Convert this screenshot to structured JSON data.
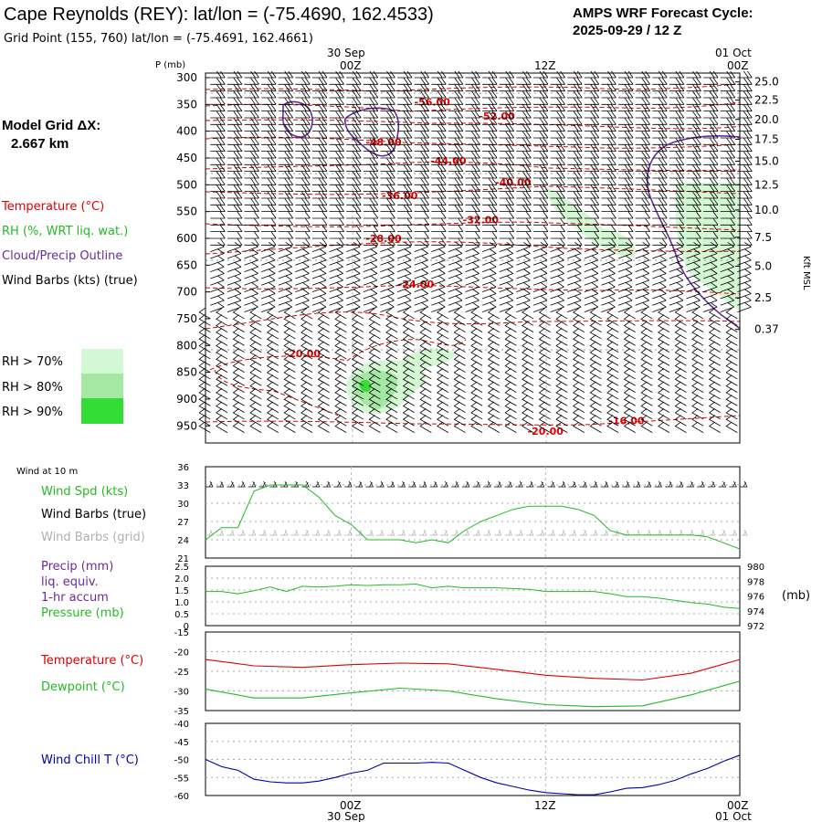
{
  "header": {
    "title": "Cape Reynolds (REY):  lat/lon = (-75.4690, 162.4533)",
    "grid_point": "Grid Point (155, 760) lat/lon = (-75.4691, 162.4661)",
    "cycle_line1": "AMPS WRF Forecast Cycle:",
    "cycle_line2": "2025-09-29 / 12  Z"
  },
  "side_labels": {
    "model_grid_label": "Model Grid ΔX:",
    "model_grid_value": "2.667 km",
    "temperature": "Temperature (°C)",
    "rh": "RH (%, WRT liq. wat.)",
    "cloud": "Cloud/Precip Outline",
    "wind": "Wind Barbs (kts) (true)",
    "rh70": "RH > 70%",
    "rh80": "RH > 80%",
    "rh90": "RH > 90%",
    "wind10": "Wind at 10 m",
    "wind_spd": "Wind Spd (kts)",
    "wind_barbs_true": "Wind Barbs (true)",
    "wind_barbs_grid": "Wind Barbs (grid)",
    "precip": "Precip (mm)",
    "liq": "liq. equiv.",
    "accum": "1-hr accum",
    "pressure": "Pressure (mb)",
    "pressure_unit": "(mb)",
    "temp_panel": "Temperature (°C)",
    "dewpoint": "Dewpoint (°C)",
    "windchill": "Wind Chill T (°C)"
  },
  "colors": {
    "temperature": "#dd0000",
    "rh": "#22bb22",
    "cloud": "#6a2a9a",
    "wind_grid": "#b0b0b0",
    "windchill": "#0000aa",
    "rh70": "#d4f8d4",
    "rh80": "#a4e8a4",
    "rh90": "#33dd33"
  },
  "time_axis": {
    "top_date_1": "30 Sep",
    "top_date_2": "01 Oct",
    "bottom_date_1": "30 Sep",
    "bottom_date_2": "01 Oct",
    "ticks": [
      "00Z",
      "12Z",
      "00Z"
    ],
    "tick_hours": [
      9,
      21,
      33
    ],
    "hours_min": 0,
    "hours_max": 33
  },
  "chart_data": [
    {
      "type": "contour",
      "id": "cross_section",
      "xlabel": "",
      "ylabel": "P (mb)",
      "y2label": "Kft MSL",
      "pressure_ticks": [
        300,
        350,
        400,
        450,
        500,
        550,
        600,
        650,
        700,
        750,
        800,
        850,
        900,
        950
      ],
      "pressure_range": [
        300,
        970
      ],
      "height_ticks": [
        {
          "p": 308,
          "label": "25.0"
        },
        {
          "p": 342,
          "label": "22.5"
        },
        {
          "p": 378,
          "label": "20.0"
        },
        {
          "p": 415,
          "label": "17.5"
        },
        {
          "p": 456,
          "label": "15.0"
        },
        {
          "p": 500,
          "label": "12.5"
        },
        {
          "p": 547,
          "label": "10.0"
        },
        {
          "p": 598,
          "label": "7.5"
        },
        {
          "p": 652,
          "label": "5.0"
        },
        {
          "p": 711,
          "label": "2.5"
        },
        {
          "p": 770,
          "label": "0.37"
        }
      ],
      "isotherm_labels": [
        {
          "label": "-56.00",
          "hour": 14,
          "p": 345
        },
        {
          "label": "-52.00",
          "hour": 18,
          "p": 372
        },
        {
          "label": "-48.00",
          "hour": 11,
          "p": 420
        },
        {
          "label": "-44.00",
          "hour": 15,
          "p": 455
        },
        {
          "label": "-40.00",
          "hour": 19,
          "p": 495
        },
        {
          "label": "-36.00",
          "hour": 12,
          "p": 520
        },
        {
          "label": "-32.00",
          "hour": 17,
          "p": 565
        },
        {
          "label": "-28.00",
          "hour": 11,
          "p": 600
        },
        {
          "label": "-24.00",
          "hour": 13,
          "p": 685
        },
        {
          "label": "-20.00",
          "hour": 6,
          "p": 815
        },
        {
          "label": "-20.00",
          "hour": 21,
          "p": 960
        },
        {
          "label": "-16.00",
          "hour": 26,
          "p": 940
        }
      ]
    },
    {
      "type": "line",
      "id": "wind_speed",
      "ylabel": "Wind Spd (kts)",
      "ylim": [
        21,
        36
      ],
      "yticks": [
        21,
        24,
        27,
        30,
        33,
        36
      ],
      "x": [
        0,
        1,
        2,
        3,
        4,
        5,
        6,
        7,
        8,
        9,
        10,
        11,
        12,
        13,
        14,
        15,
        16,
        17,
        18,
        19,
        20,
        21,
        22,
        23,
        24,
        25,
        26,
        27,
        28,
        29,
        30,
        31,
        32,
        33
      ],
      "series": [
        {
          "name": "Wind Spd (kts)",
          "color": "#22bb22",
          "values": [
            24,
            26,
            26,
            32,
            33,
            33,
            33,
            31,
            28,
            26.5,
            24,
            24,
            24,
            23.5,
            24,
            23.5,
            25.5,
            27,
            28,
            29,
            29.5,
            29.5,
            29.5,
            29,
            28,
            25.5,
            24.8,
            24.8,
            24.8,
            24.8,
            24.8,
            24.5,
            23.5,
            22.5
          ]
        }
      ]
    },
    {
      "type": "line",
      "id": "precip_pressure",
      "ylabel": "Precip (mm)",
      "y2label": "Pressure (mb)",
      "ylim": [
        0,
        2.5
      ],
      "yticks": [
        0,
        0.5,
        1.0,
        1.5,
        2.0,
        2.5
      ],
      "ytick_labels": [
        "0",
        "0.5",
        "1.0",
        "1.5",
        "2.0",
        "2.5"
      ],
      "y2lim": [
        972,
        980
      ],
      "y2ticks": [
        972,
        974,
        976,
        978,
        980
      ],
      "x": [
        0,
        1,
        2,
        3,
        4,
        5,
        6,
        7,
        8,
        9,
        10,
        11,
        12,
        13,
        14,
        15,
        16,
        17,
        18,
        19,
        20,
        21,
        22,
        23,
        24,
        25,
        26,
        27,
        28,
        29,
        30,
        31,
        32,
        33
      ],
      "series": [
        {
          "name": "Pressure (mb)",
          "color": "#22bb22",
          "axis": "right",
          "values": [
            976.6,
            976.6,
            976.3,
            976.7,
            977.2,
            976.6,
            977.3,
            977.2,
            977.3,
            977.5,
            977.4,
            977.5,
            977.5,
            977.6,
            977.1,
            977.3,
            977.1,
            977.1,
            977.1,
            977.0,
            976.9,
            976.6,
            976.6,
            976.6,
            976.6,
            976.3,
            975.9,
            975.9,
            975.7,
            975.4,
            975.1,
            974.9,
            974.5,
            974.3
          ]
        }
      ]
    },
    {
      "type": "line",
      "id": "temp_dewpoint",
      "ylim": [
        -35,
        -15
      ],
      "yticks": [
        -35,
        -30,
        -25,
        -20,
        -15
      ],
      "x": [
        0,
        3,
        6,
        9,
        12,
        15,
        18,
        21,
        24,
        27,
        30,
        33
      ],
      "series": [
        {
          "name": "Temperature (°C)",
          "color": "#dd0000",
          "values": [
            -22,
            -23.6,
            -24,
            -23.3,
            -22.9,
            -23.1,
            -24.5,
            -26,
            -26.8,
            -27.2,
            -25.5,
            -22
          ]
        },
        {
          "name": "Dewpoint (°C)",
          "color": "#22bb22",
          "values": [
            -29.5,
            -31.8,
            -31.8,
            -30.5,
            -29.3,
            -30,
            -32,
            -33.5,
            -34,
            -33.8,
            -31,
            -27.5
          ]
        }
      ]
    },
    {
      "type": "line",
      "id": "wind_chill",
      "ylim": [
        -60,
        -40
      ],
      "yticks": [
        -60,
        -55,
        -50,
        -45,
        -40
      ],
      "x": [
        0,
        1,
        2,
        3,
        4,
        5,
        6,
        7,
        8,
        9,
        10,
        11,
        12,
        13,
        14,
        15,
        16,
        17,
        18,
        19,
        20,
        21,
        22,
        23,
        24,
        25,
        26,
        27,
        28,
        29,
        30,
        31,
        32,
        33
      ],
      "series": [
        {
          "name": "Wind Chill T (°C)",
          "color": "#0000aa",
          "values": [
            -50,
            -52,
            -53,
            -55.5,
            -56.2,
            -56.5,
            -56.5,
            -56,
            -55,
            -53.8,
            -53,
            -51,
            -51,
            -51,
            -50.8,
            -51,
            -53,
            -55,
            -56.5,
            -57.5,
            -58.5,
            -59.2,
            -59.5,
            -59.8,
            -59.8,
            -59,
            -58,
            -57.8,
            -57,
            -55.8,
            -54,
            -52.5,
            -50.5,
            -48.8
          ]
        }
      ]
    }
  ]
}
